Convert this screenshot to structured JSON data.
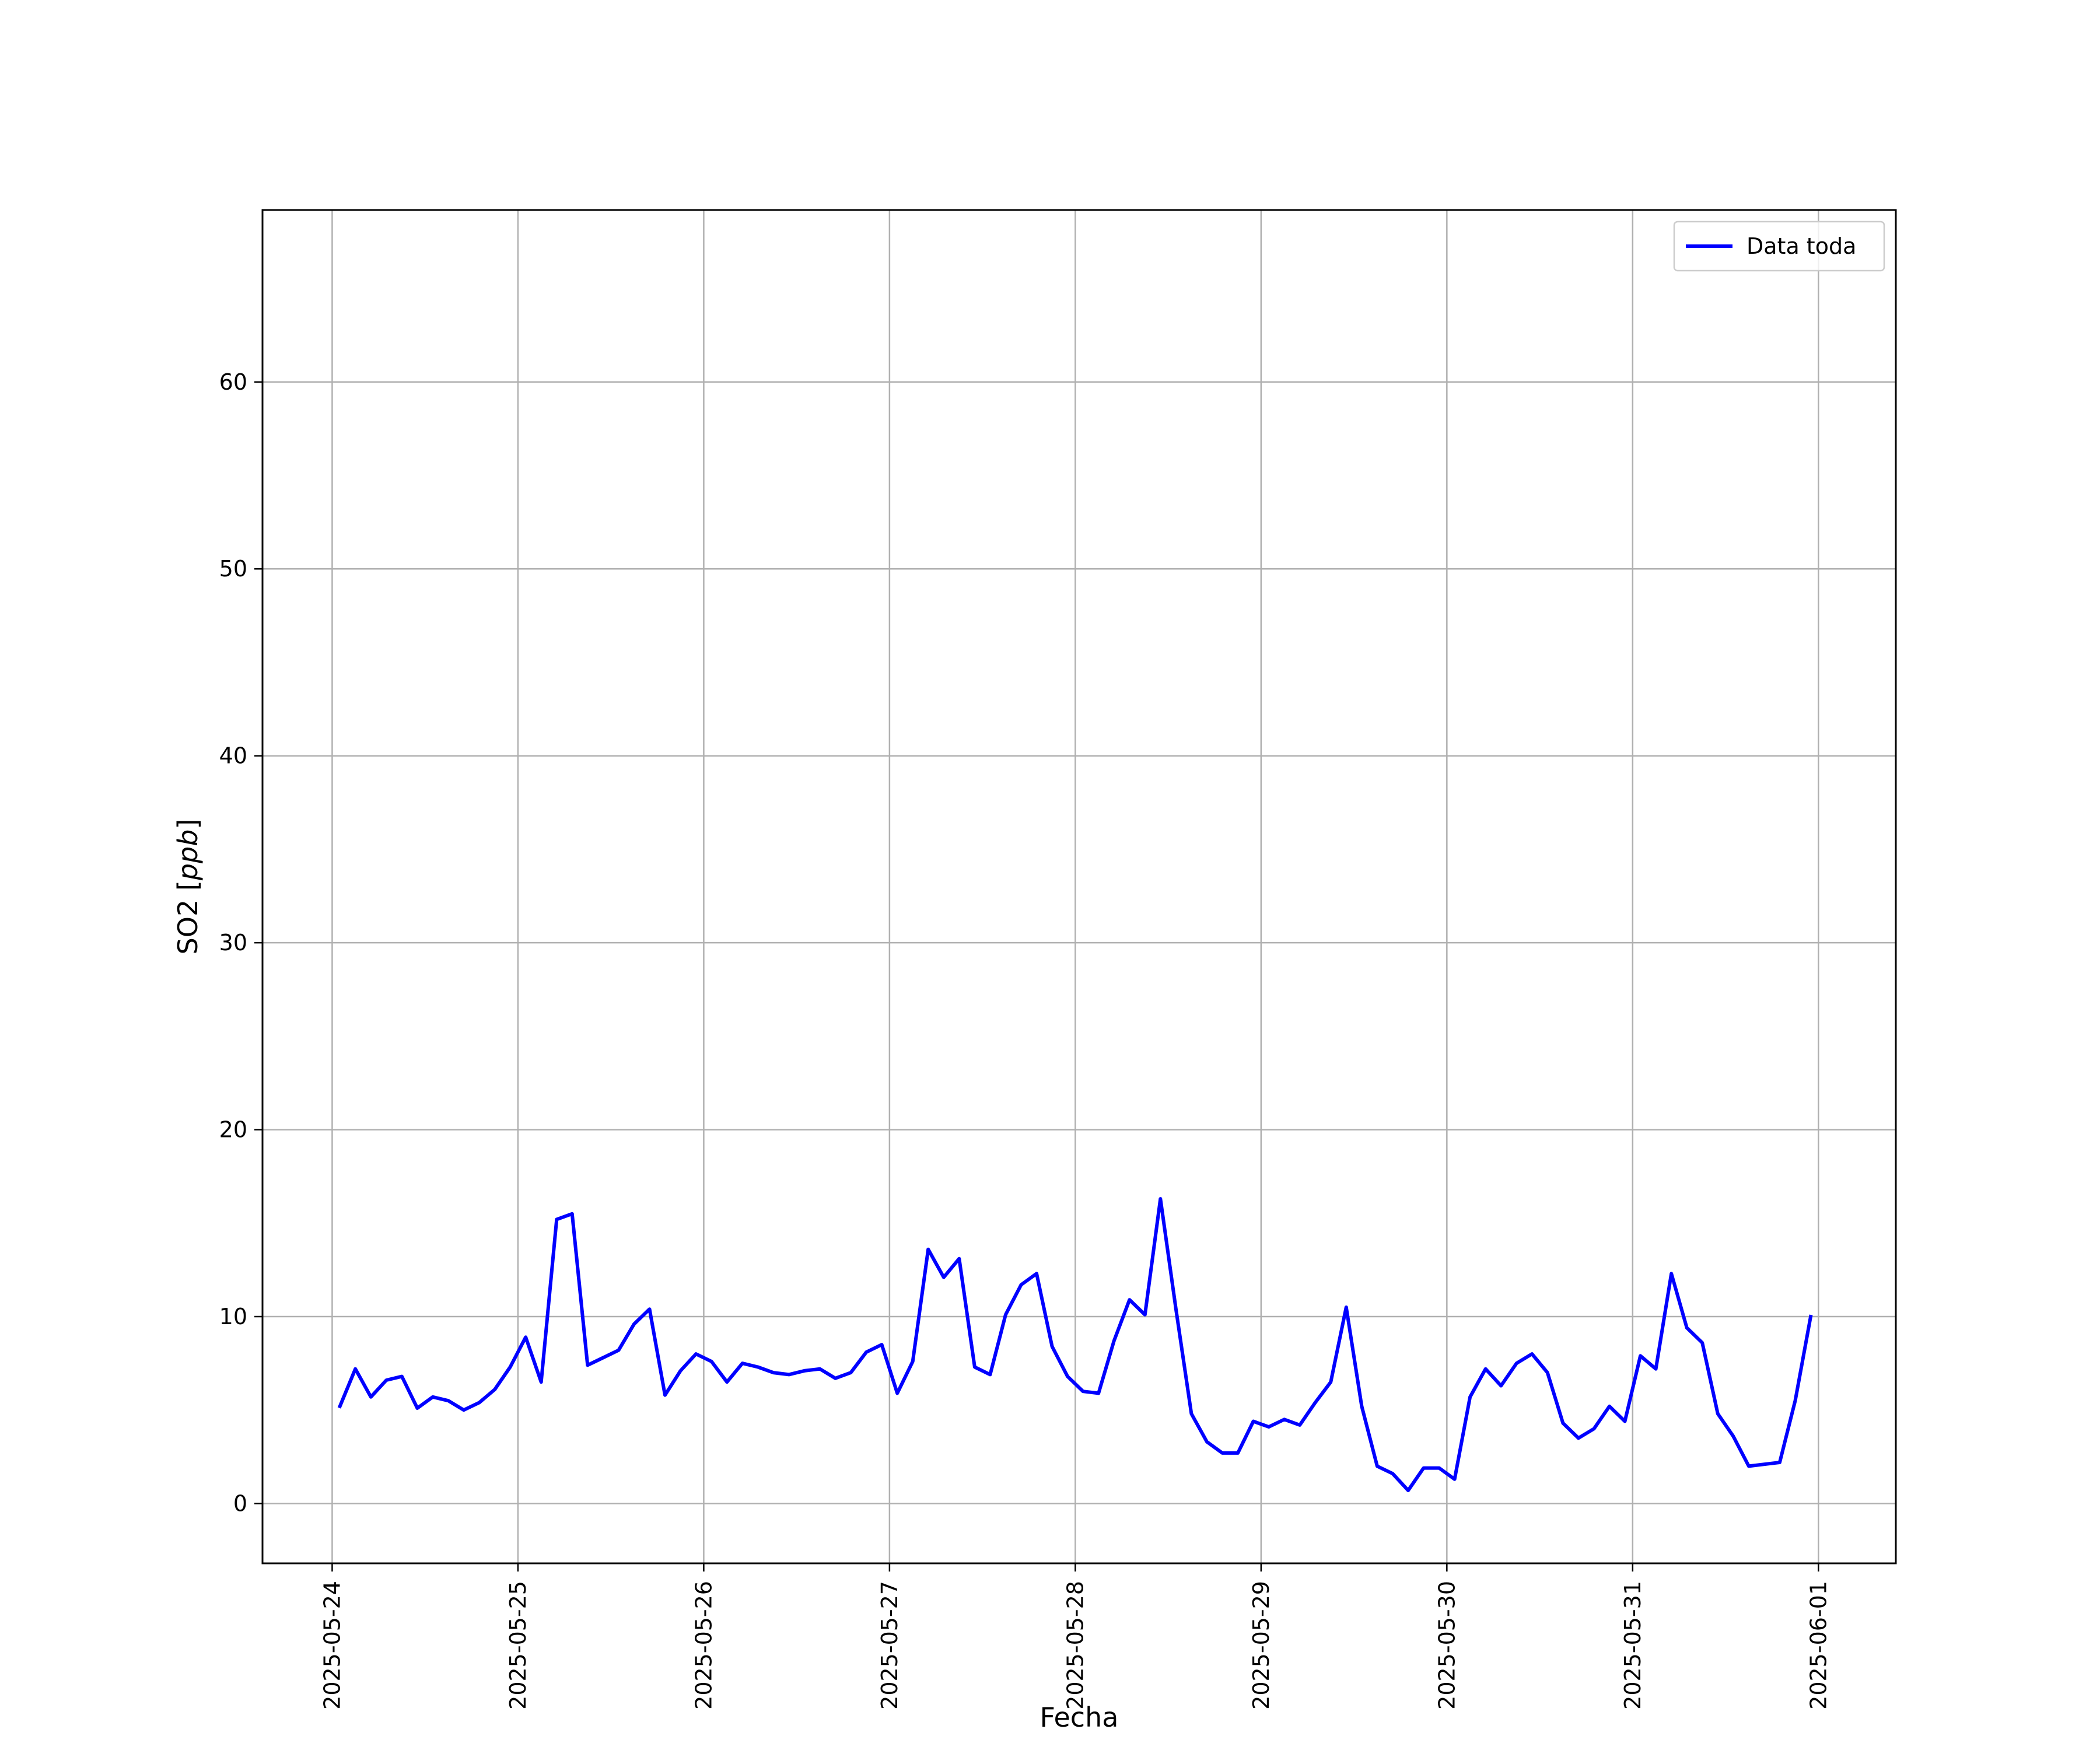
{
  "chart_data": {
    "type": "line",
    "xlabel": "Fecha",
    "ylabel_text": "SO2 [",
    "ylabel_unit": "ppb",
    "ylabel_close": "]",
    "xlim": [
      "2025-05-23 15:00",
      "2025-06-01 10:00"
    ],
    "ylim": [
      -3.2,
      69.2
    ],
    "x_ticks": [
      "2025-05-24",
      "2025-05-25",
      "2025-05-26",
      "2025-05-27",
      "2025-05-28",
      "2025-05-29",
      "2025-05-30",
      "2025-05-31",
      "2025-06-01"
    ],
    "y_ticks": [
      0,
      10,
      20,
      30,
      40,
      50,
      60
    ],
    "grid": true,
    "legend_position": "top-right",
    "series": [
      {
        "name": "Data toda",
        "color": "#0000ff",
        "x": [
          "2025-05-24 01:00",
          "2025-05-24 03:00",
          "2025-05-24 05:00",
          "2025-05-24 07:00",
          "2025-05-24 09:00",
          "2025-05-24 11:00",
          "2025-05-24 13:00",
          "2025-05-24 15:00",
          "2025-05-24 17:00",
          "2025-05-24 19:00",
          "2025-05-24 21:00",
          "2025-05-24 23:00",
          "2025-05-25 01:00",
          "2025-05-25 03:00",
          "2025-05-25 05:00",
          "2025-05-25 07:00",
          "2025-05-25 09:00",
          "2025-05-25 11:00",
          "2025-05-25 13:00",
          "2025-05-25 15:00",
          "2025-05-25 17:00",
          "2025-05-25 19:00",
          "2025-05-25 21:00",
          "2025-05-25 23:00",
          "2025-05-26 01:00",
          "2025-05-26 03:00",
          "2025-05-26 05:00",
          "2025-05-26 07:00",
          "2025-05-26 09:00",
          "2025-05-26 11:00",
          "2025-05-26 13:00",
          "2025-05-26 15:00",
          "2025-05-26 17:00",
          "2025-05-26 19:00",
          "2025-05-26 21:00",
          "2025-05-26 23:00",
          "2025-05-27 01:00",
          "2025-05-27 03:00",
          "2025-05-27 05:00",
          "2025-05-27 07:00",
          "2025-05-27 09:00",
          "2025-05-27 11:00",
          "2025-05-27 13:00",
          "2025-05-27 15:00",
          "2025-05-27 17:00",
          "2025-05-27 19:00",
          "2025-05-27 21:00",
          "2025-05-27 23:00",
          "2025-05-28 01:00",
          "2025-05-28 03:00",
          "2025-05-28 05:00",
          "2025-05-28 07:00",
          "2025-05-28 09:00",
          "2025-05-28 11:00",
          "2025-05-28 13:00",
          "2025-05-28 15:00",
          "2025-05-28 17:00",
          "2025-05-28 19:00",
          "2025-05-28 21:00",
          "2025-05-28 23:00",
          "2025-05-29 01:00",
          "2025-05-29 03:00",
          "2025-05-29 05:00",
          "2025-05-29 07:00",
          "2025-05-29 09:00",
          "2025-05-29 11:00",
          "2025-05-29 13:00",
          "2025-05-29 15:00",
          "2025-05-29 17:00",
          "2025-05-29 19:00",
          "2025-05-29 21:00",
          "2025-05-29 23:00",
          "2025-05-30 01:00",
          "2025-05-30 03:00",
          "2025-05-30 05:00",
          "2025-05-30 07:00",
          "2025-05-30 09:00",
          "2025-05-30 11:00",
          "2025-05-30 13:00",
          "2025-05-30 15:00",
          "2025-05-30 17:00",
          "2025-05-30 19:00",
          "2025-05-30 21:00",
          "2025-05-30 23:00",
          "2025-05-31 01:00",
          "2025-05-31 03:00",
          "2025-05-31 05:00",
          "2025-05-31 07:00",
          "2025-05-31 09:00",
          "2025-05-31 11:00",
          "2025-05-31 13:00",
          "2025-05-31 15:00",
          "2025-05-31 17:00",
          "2025-05-31 19:00",
          "2025-05-31 21:00",
          "2025-05-31 23:00"
        ],
        "values": [
          5.2,
          7.2,
          5.7,
          6.6,
          6.8,
          5.1,
          5.7,
          5.5,
          5.0,
          5.4,
          6.1,
          7.3,
          8.9,
          6.5,
          15.2,
          15.5,
          7.4,
          7.8,
          8.2,
          9.6,
          10.4,
          5.8,
          7.1,
          8.0,
          7.6,
          6.5,
          7.5,
          7.3,
          7.0,
          6.9,
          7.1,
          7.2,
          6.7,
          7.0,
          8.1,
          8.5,
          5.9,
          7.6,
          13.6,
          12.1,
          13.1,
          7.3,
          6.9,
          10.1,
          11.7,
          12.3,
          8.4,
          6.8,
          6.0,
          5.9,
          8.7,
          10.9,
          10.1,
          16.3,
          10.4,
          4.8,
          3.3,
          2.7,
          2.7,
          4.4,
          4.1,
          4.5,
          4.2,
          5.4,
          6.5,
          10.5,
          5.2,
          2.0,
          1.6,
          0.7,
          1.9,
          1.9,
          1.3,
          5.7,
          7.2,
          6.3,
          7.5,
          8.0,
          7.0,
          4.3,
          3.5,
          4.0,
          5.2,
          4.4,
          7.9,
          7.2,
          12.3,
          9.4,
          8.6,
          4.8,
          3.6,
          2.0,
          2.1,
          2.2,
          5.5,
          10.0
        ]
      }
    ]
  }
}
